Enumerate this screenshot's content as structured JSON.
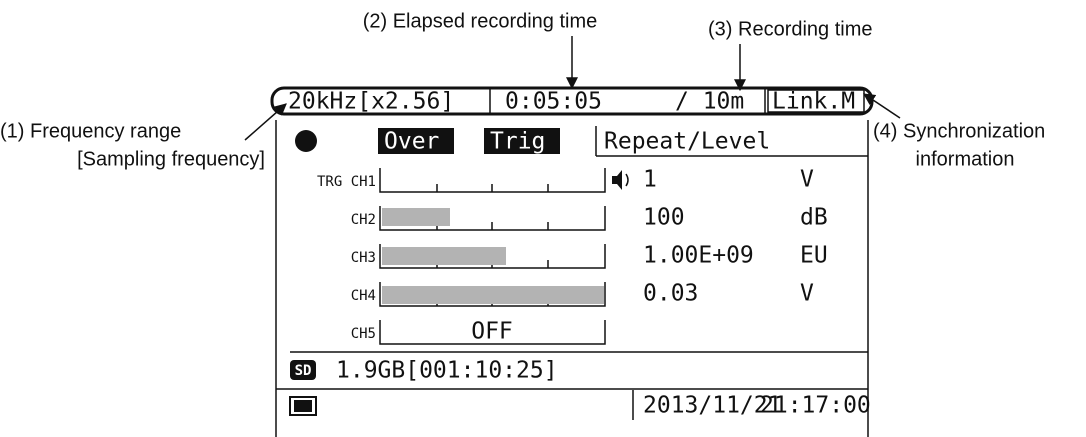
{
  "callouts": {
    "frequency": [
      "(1) Frequency range",
      "[Sampling frequency]"
    ],
    "elapsed": "(2) Elapsed recording time",
    "recording": "(3) Recording time",
    "sync": [
      "(4) Synchronization",
      "information"
    ]
  },
  "status_bar": {
    "range": "20kHz[x2.56]",
    "elapsed": "0:05:05",
    "recording": "/ 10m",
    "sync": "Link.M"
  },
  "mode_row": {
    "over": "Over",
    "trig": "Trig",
    "mode": "Repeat/Level"
  },
  "channels": [
    {
      "label": "TRG CH1",
      "value": "1",
      "unit": "V"
    },
    {
      "label": "CH2",
      "value": "100",
      "unit": "dB"
    },
    {
      "label": "CH3",
      "value": "1.00E+09",
      "unit": "EU"
    },
    {
      "label": "CH4",
      "value": "0.03",
      "unit": "V"
    },
    {
      "label": "CH5",
      "state": "OFF"
    }
  ],
  "storage": {
    "icon": "SD",
    "text": "1.9GB[001:10:25]"
  },
  "footer": {
    "date": "2013/11/21",
    "time": "21:17:00"
  }
}
